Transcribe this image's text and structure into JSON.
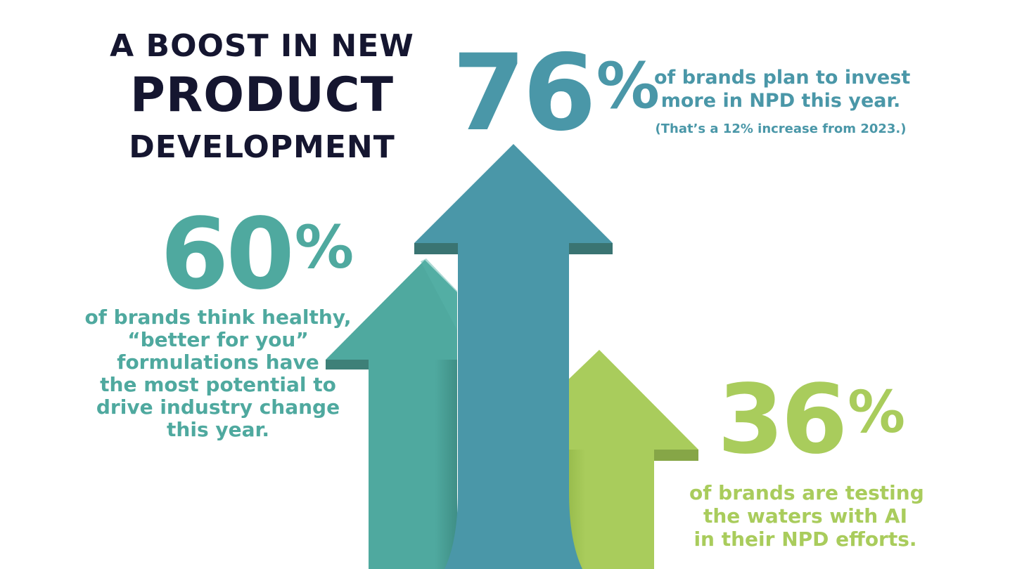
{
  "title": {
    "line1": "A BOOST IN NEW",
    "line2": "PRODUCT",
    "line3": "DEVELOPMENT"
  },
  "stats": {
    "invest": {
      "number": "76",
      "percent_sign": "%",
      "line1": "of brands plan to invest",
      "line2": "more in NPD this year.",
      "note": "(That’s a 12% increase from 2023.)"
    },
    "healthy": {
      "number": "60",
      "percent_sign": "%",
      "lines": [
        "of brands think healthy,",
        "“better for you”",
        "formulations have",
        "the most potential to",
        "drive industry change",
        "this year."
      ]
    },
    "ai": {
      "number": "36",
      "percent_sign": "%",
      "lines": [
        "of brands are testing",
        "the waters with AI",
        "in their NPD efforts."
      ]
    }
  },
  "colors": {
    "title": "#151630",
    "blue_arrow": "#4a97a8",
    "teal_arrow": "#4fa99f",
    "green_arrow": "#a9cc5c"
  },
  "graphics": {
    "arrows": [
      "teal-arrow",
      "blue-arrow",
      "green-arrow"
    ]
  }
}
